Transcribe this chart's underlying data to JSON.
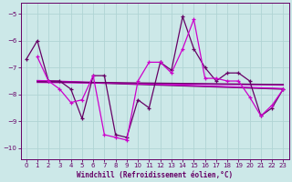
{
  "bg_color": "#cce8e8",
  "grid_color": "#b0d4d4",
  "line_color_dark": "#660066",
  "line_color_bright": "#cc00cc",
  "xlabel": "Windchill (Refroidissement éolien,°C)",
  "ylim": [
    -10.4,
    -4.6
  ],
  "xlim": [
    -0.5,
    23.5
  ],
  "yticks": [
    -10,
    -9,
    -8,
    -7,
    -6,
    -5
  ],
  "xticks": [
    0,
    1,
    2,
    3,
    4,
    5,
    6,
    7,
    8,
    9,
    10,
    11,
    12,
    13,
    14,
    15,
    16,
    17,
    18,
    19,
    20,
    21,
    22,
    23
  ],
  "series_main": [
    -6.7,
    -6.0,
    -7.5,
    -7.5,
    -7.8,
    -8.9,
    -7.3,
    -7.3,
    -9.5,
    -9.6,
    -8.2,
    -8.5,
    -6.8,
    -7.1,
    -5.1,
    -6.3,
    -7.0,
    -7.5,
    -7.2,
    -7.2,
    -7.5,
    -8.8,
    -8.5,
    -7.8
  ],
  "series_sec": [
    null,
    -6.6,
    -7.5,
    -7.8,
    -8.3,
    -8.2,
    -7.3,
    -9.5,
    -9.6,
    -9.7,
    -7.5,
    -6.8,
    -6.8,
    -7.2,
    -6.3,
    -5.2,
    -7.4,
    -7.4,
    -7.5,
    -7.5,
    -8.1,
    -8.8,
    -8.4,
    -7.8
  ],
  "trend1_x": [
    1,
    23
  ],
  "trend1_y": [
    -7.45,
    -7.75
  ],
  "trend2_x": [
    1,
    23
  ],
  "trend2_y": [
    -7.55,
    -7.65
  ],
  "trend3_x": [
    1,
    23
  ],
  "trend3_y": [
    -7.5,
    -7.8
  ],
  "trend4_x": [
    1,
    23
  ],
  "trend4_y": [
    -7.6,
    -7.7
  ]
}
